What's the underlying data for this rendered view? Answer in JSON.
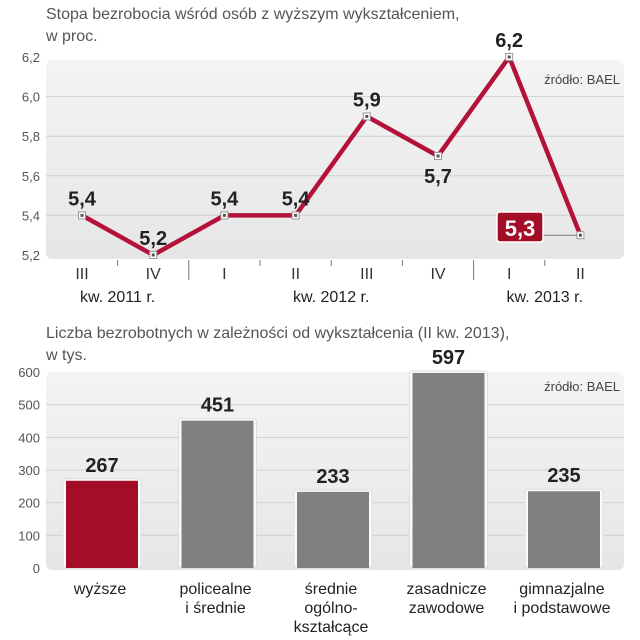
{
  "chart_data": [
    {
      "type": "line",
      "title": "Stopa bezrobocia wśród osób z wyższym wykształceniem,",
      "subtitle": "w proc.",
      "source": "źródło: BAEL",
      "categories": [
        "III",
        "IV",
        "I",
        "II",
        "III",
        "IV",
        "I",
        "II"
      ],
      "groups": [
        {
          "label": "kw. 2011 r.",
          "from": 0,
          "to": 1
        },
        {
          "label": "kw. 2012 r.",
          "from": 2,
          "to": 5
        },
        {
          "label": "kw. 2013 r.",
          "from": 6,
          "to": 7
        }
      ],
      "values": [
        5.4,
        5.2,
        5.4,
        5.4,
        5.9,
        5.7,
        6.2,
        5.3
      ],
      "value_labels": [
        "5,4",
        "5,2",
        "5,4",
        "5,4",
        "5,9",
        "5,7",
        "6,2",
        "5,3"
      ],
      "yticks": [
        "5,2",
        "5,4",
        "5,6",
        "5,8",
        "6,0",
        "6,2"
      ],
      "ylim": [
        5.2,
        6.2
      ],
      "highlight_index": 7,
      "color": "#b5123a",
      "grid": true
    },
    {
      "type": "bar",
      "title": "Liczba bezrobotnych w zależności od wykształcenia (II kw. 2013),",
      "subtitle": "w tys.",
      "source": "źródło: BAEL",
      "categories": [
        [
          "wyższe"
        ],
        [
          "policealne",
          "i średnie"
        ],
        [
          "średnie",
          "ogólno-",
          "kształcące"
        ],
        [
          "zasadnicze",
          "zawodowe"
        ],
        [
          "gimnazjalne",
          "i podstawowe"
        ]
      ],
      "values": [
        267,
        451,
        233,
        597,
        235
      ],
      "yticks": [
        "0",
        "100",
        "200",
        "300",
        "400",
        "500",
        "600"
      ],
      "ylim": [
        0,
        600
      ],
      "colors": [
        "#a30d27",
        "#808080",
        "#808080",
        "#808080",
        "#808080"
      ],
      "grid": true
    }
  ]
}
